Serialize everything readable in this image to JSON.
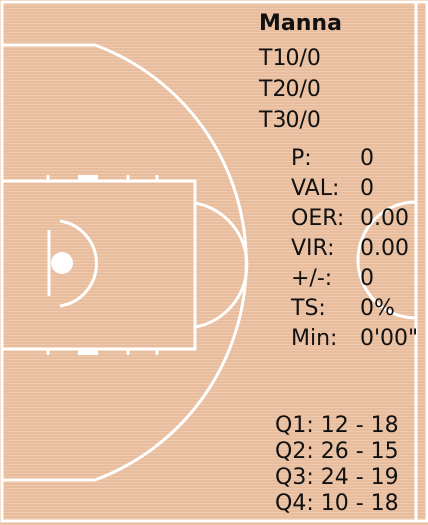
{
  "player": {
    "name": "Manna"
  },
  "shooting": [
    {
      "label": "T1",
      "value": "0/0"
    },
    {
      "label": "T2",
      "value": "0/0"
    },
    {
      "label": "T3",
      "value": "0/0"
    }
  ],
  "stats": [
    {
      "label": "P:",
      "value": "0"
    },
    {
      "label": "VAL:",
      "value": "0"
    },
    {
      "label": "OER:",
      "value": "0.00"
    },
    {
      "label": "VIR:",
      "value": "0.00"
    },
    {
      "label": "+/-:",
      "value": "0"
    },
    {
      "label": "TS:",
      "value": "0%"
    },
    {
      "label": "Min:",
      "value": "0'00\""
    }
  ],
  "quarters": [
    {
      "label": "Q1:",
      "score": "12 - 18"
    },
    {
      "label": "Q2:",
      "score": "26 - 15"
    },
    {
      "label": "Q3:",
      "score": "24 - 19"
    },
    {
      "label": "Q4:",
      "score": "10 - 18"
    }
  ],
  "colors": {
    "court": "#ecc3a4",
    "lines": "#ffffff",
    "text": "#111111"
  }
}
